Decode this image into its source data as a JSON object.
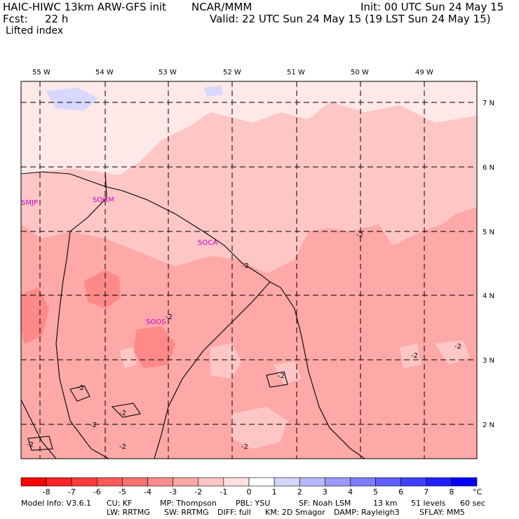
{
  "header": {
    "title": "HAIC-HIWC 13km ARW-GFS init",
    "org": "NCAR/MMM",
    "init": "Init: 00 UTC Sun 24 May 15",
    "fcst_label": "Fcst:",
    "fcst_value": "22 h",
    "valid": "Valid: 22 UTC Sun 24 May 15 (19 LST Sun 24 May 15)",
    "field": "Lifted index"
  },
  "map": {
    "longitudes": [
      "55 W",
      "54 W",
      "53 W",
      "52 W",
      "51 W",
      "50 W",
      "49 W"
    ],
    "latitudes": [
      "7 N",
      "6 N",
      "5 N",
      "4 N",
      "3 N",
      "2 N"
    ],
    "stations": [
      "SMJP",
      "SOGM",
      "SOCA",
      "SOOS"
    ],
    "contour_label": "-2",
    "colors": {
      "lightest": "#ffe8e8",
      "light": "#ffc6c6",
      "medium": "#ffa8a8",
      "strong": "#ff8888",
      "blue_patch": "#d8d8ff"
    }
  },
  "colorbar": {
    "ticks": [
      "-8",
      "-7",
      "-6",
      "-5",
      "-4",
      "-3",
      "-2",
      "-1",
      "0",
      "1",
      "2",
      "3",
      "4",
      "5",
      "6",
      "7",
      "8"
    ],
    "unit": "°C",
    "colors": [
      "#ff0000",
      "#ff2222",
      "#ff3c3c",
      "#ff5858",
      "#ff7070",
      "#ff8c8c",
      "#ffa6a6",
      "#ffc4c4",
      "#ffe0e0",
      "#ffffff",
      "#d6d6ff",
      "#b8b8ff",
      "#9a9aff",
      "#7c7cff",
      "#5e5eff",
      "#4040ff",
      "#2020ff",
      "#0000ff"
    ]
  },
  "footer": {
    "line1": [
      "Model Info: V3.6.1",
      "CU: KF",
      "MP: Thompson",
      "PBL: YSU",
      "SF: Noah LSM",
      "13 km",
      "51 levels",
      "60 sec"
    ],
    "line2": [
      "LW: RRTMG",
      "SW: RRTMG",
      "DIFF: full",
      "KM: 2D Smagor",
      "DAMP: Rayleigh3",
      "SFLAY: MM5"
    ]
  }
}
